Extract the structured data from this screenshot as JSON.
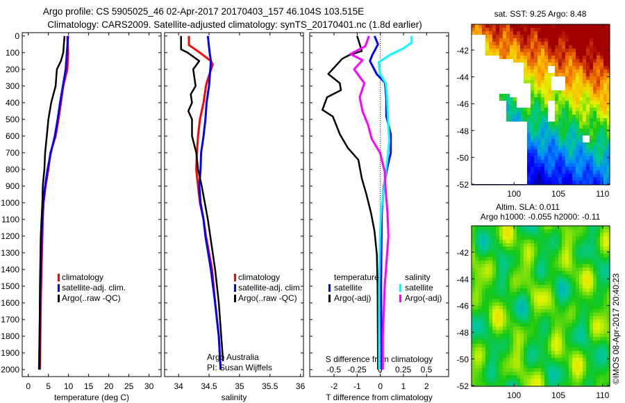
{
  "header": {
    "title_line1": "Argo profile: CS 5905025_46 02-Apr-2017 20170403_157 46.104S 103.515E",
    "title_line2": "Climatology: CARS2009. Satellite-adjusted climatology: synTS_20170401.nc (1.8d earlier)"
  },
  "chart_data": [
    {
      "id": "temperature",
      "type": "line",
      "xlabel": "temperature (deg C)",
      "xlim": [
        -1.5,
        33
      ],
      "xticks": [
        0,
        5,
        10,
        15,
        20,
        25,
        30
      ],
      "xtick_labels": [
        "0",
        "5",
        "10",
        "15",
        "20",
        "25",
        "30"
      ],
      "ylabel": "depth",
      "ylim": [
        -20,
        2042
      ],
      "yticks": [
        0,
        100,
        200,
        300,
        400,
        500,
        600,
        700,
        800,
        900,
        1000,
        1100,
        1200,
        1300,
        1400,
        1500,
        1600,
        1700,
        1800,
        1900,
        2000
      ],
      "ytick_labels": [
        "0",
        "100",
        "200",
        "300",
        "400",
        "500",
        "600",
        "700",
        "800",
        "900",
        "1000",
        "1100",
        "1200",
        "1300",
        "1400",
        "1500",
        "1600",
        "1700",
        "1800",
        "1900",
        "2000"
      ],
      "series": [
        {
          "name": "climatology",
          "color": "#ff0000",
          "points": [
            [
              0,
              9.7
            ],
            [
              100,
              9.9
            ],
            [
              200,
              9.7
            ],
            [
              300,
              8.7
            ],
            [
              400,
              8.1
            ],
            [
              500,
              7.5
            ],
            [
              600,
              6.8
            ],
            [
              700,
              5.5
            ],
            [
              800,
              5.0
            ],
            [
              900,
              4.3
            ],
            [
              1000,
              3.8
            ],
            [
              1100,
              3.6
            ],
            [
              1200,
              3.5
            ],
            [
              1400,
              3.3
            ],
            [
              1600,
              3.1
            ],
            [
              2000,
              2.9
            ]
          ]
        },
        {
          "name": "satellite-adj. clim.",
          "color": "#0000ff",
          "points": [
            [
              0,
              9.9
            ],
            [
              100,
              9.6
            ],
            [
              200,
              9.3
            ],
            [
              300,
              8.6
            ],
            [
              400,
              7.9
            ],
            [
              500,
              7.3
            ],
            [
              600,
              6.6
            ],
            [
              700,
              5.6
            ],
            [
              800,
              4.8
            ],
            [
              900,
              4.2
            ],
            [
              1000,
              3.7
            ],
            [
              1200,
              3.3
            ],
            [
              1500,
              3.0
            ],
            [
              2000,
              2.7
            ]
          ]
        },
        {
          "name": "Argo(..raw -QC)",
          "color": "#000000",
          "points": [
            [
              0,
              9.0
            ],
            [
              100,
              8.7
            ],
            [
              150,
              8.1
            ],
            [
              200,
              7.1
            ],
            [
              300,
              6.8
            ],
            [
              400,
              5.7
            ],
            [
              500,
              5.0
            ],
            [
              600,
              4.6
            ],
            [
              700,
              4.2
            ],
            [
              800,
              4.0
            ],
            [
              900,
              3.6
            ],
            [
              1000,
              3.5
            ],
            [
              1100,
              3.3
            ],
            [
              1200,
              3.1
            ],
            [
              1500,
              2.9
            ],
            [
              2000,
              2.8
            ]
          ]
        }
      ],
      "legend": {
        "placement": "lower-middle",
        "entries": [
          "climatology",
          "satellite-adj. clim.",
          "Argo(..raw -QC)"
        ]
      }
    },
    {
      "id": "salinity",
      "type": "line",
      "xlabel": "salinity",
      "xlim": [
        33.77,
        36.05
      ],
      "xticks": [
        34,
        34.5,
        35,
        35.5,
        36
      ],
      "xtick_labels": [
        "34",
        "34.5",
        "35",
        "35.5",
        "36"
      ],
      "ylim": [
        -20,
        2042
      ],
      "series": [
        {
          "name": "climatology",
          "color": "#ff0000",
          "points": [
            [
              0,
              34.17
            ],
            [
              54,
              34.17
            ],
            [
              100,
              34.35
            ],
            [
              150,
              34.53
            ],
            [
              170,
              34.56
            ],
            [
              270,
              34.47
            ],
            [
              300,
              34.45
            ],
            [
              400,
              34.41
            ],
            [
              500,
              34.35
            ],
            [
              600,
              34.32
            ],
            [
              700,
              34.3
            ],
            [
              800,
              34.29
            ],
            [
              900,
              34.32
            ],
            [
              1000,
              34.35
            ],
            [
              1100,
              34.41
            ],
            [
              1200,
              34.45
            ],
            [
              1400,
              34.55
            ],
            [
              1600,
              34.6
            ],
            [
              1800,
              34.66
            ],
            [
              2000,
              34.69
            ]
          ]
        },
        {
          "name": "satellite-adj. clim.",
          "color": "#0000ff",
          "points": [
            [
              0,
              34.48
            ],
            [
              100,
              34.51
            ],
            [
              150,
              34.53
            ],
            [
              200,
              34.52
            ],
            [
              300,
              34.5
            ],
            [
              400,
              34.46
            ],
            [
              500,
              34.44
            ],
            [
              600,
              34.41
            ],
            [
              700,
              34.37
            ],
            [
              800,
              34.36
            ],
            [
              900,
              34.34
            ],
            [
              1000,
              34.36
            ],
            [
              1100,
              34.41
            ],
            [
              1200,
              34.44
            ],
            [
              1400,
              34.53
            ],
            [
              1600,
              34.6
            ],
            [
              1800,
              34.66
            ],
            [
              2000,
              34.69
            ]
          ]
        },
        {
          "name": "Argo(..raw -QC)",
          "color": "#000000",
          "points": [
            [
              0,
              34.04
            ],
            [
              80,
              34.04
            ],
            [
              100,
              34.15
            ],
            [
              150,
              34.34
            ],
            [
              200,
              34.24
            ],
            [
              300,
              34.28
            ],
            [
              350,
              34.2
            ],
            [
              400,
              34.22
            ],
            [
              450,
              34.16
            ],
            [
              500,
              34.22
            ],
            [
              600,
              34.22
            ],
            [
              700,
              34.29
            ],
            [
              800,
              34.32
            ],
            [
              900,
              34.38
            ],
            [
              1000,
              34.43
            ],
            [
              1100,
              34.48
            ],
            [
              1200,
              34.52
            ],
            [
              1400,
              34.6
            ],
            [
              1600,
              34.66
            ],
            [
              1800,
              34.7
            ],
            [
              1950,
              34.73
            ]
          ]
        }
      ],
      "legend": {
        "placement": "lower-right",
        "entries": [
          "climatology",
          "satellite-adj. clim.",
          "Argo(..raw -QC)"
        ]
      },
      "annotations": [
        "Argo Australia",
        "PI: Susan Wijffels"
      ]
    },
    {
      "id": "difference",
      "type": "line",
      "xlabel": "T difference from climatology",
      "xlim": [
        -3.05,
        2.95
      ],
      "xticks": [
        -2,
        -1,
        0,
        1,
        2
      ],
      "xtick_labels": [
        "-2",
        "-1",
        "0",
        "1",
        "2"
      ],
      "x2label": "S difference from climatology",
      "x2lim": [
        -0.76,
        0.74
      ],
      "x2ticks": [
        -0.5,
        -0.25,
        0,
        0.25,
        0.5
      ],
      "x2tick_labels": [
        "-0.5",
        "-0.25",
        "0",
        "0.25",
        "0.5"
      ],
      "ylim": [
        -20,
        2042
      ],
      "series": [
        {
          "name": "temperature satellite",
          "axis": "T",
          "color": "#0000ff",
          "points": [
            [
              0,
              -0.25
            ],
            [
              50,
              -0.1
            ],
            [
              115,
              -0.35
            ],
            [
              150,
              -0.45
            ],
            [
              230,
              -0.15
            ],
            [
              280,
              0.2
            ],
            [
              370,
              0.26
            ],
            [
              480,
              0.26
            ],
            [
              590,
              0.45
            ],
            [
              700,
              0.45
            ],
            [
              790,
              0.3
            ],
            [
              900,
              0.15
            ],
            [
              1060,
              0.06
            ],
            [
              1500,
              0.03
            ],
            [
              2000,
              0.06
            ]
          ]
        },
        {
          "name": "temperature Argo(-adj)",
          "axis": "T",
          "color": "#000000",
          "points": [
            [
              0,
              -1.0
            ],
            [
              90,
              -0.8
            ],
            [
              115,
              -1.35
            ],
            [
              137,
              -1.65
            ],
            [
              228,
              -2.25
            ],
            [
              283,
              -1.75
            ],
            [
              325,
              -1.7
            ],
            [
              367,
              -2.3
            ],
            [
              443,
              -2.5
            ],
            [
              483,
              -2.05
            ],
            [
              588,
              -1.75
            ],
            [
              672,
              -1.4
            ],
            [
              742,
              -0.95
            ],
            [
              854,
              -0.8
            ],
            [
              950,
              -0.6
            ],
            [
              1062,
              -0.4
            ],
            [
              1171,
              -0.25
            ],
            [
              1312,
              -0.15
            ],
            [
              1500,
              -0.12
            ],
            [
              2000,
              -0.1
            ]
          ]
        },
        {
          "name": "salinity satellite",
          "axis": "S",
          "color": "#00ffff",
          "points": [
            [
              0,
              0.34
            ],
            [
              40,
              0.34
            ],
            [
              75,
              0.25
            ],
            [
              115,
              0.1
            ],
            [
              158,
              -0.015
            ],
            [
              228,
              0.0
            ],
            [
              283,
              0.06
            ],
            [
              367,
              0.075
            ],
            [
              500,
              0.085
            ],
            [
              630,
              0.1
            ],
            [
              780,
              0.07
            ],
            [
              920,
              0.04
            ],
            [
              1060,
              0.01
            ],
            [
              1200,
              0.0
            ],
            [
              1500,
              -0.01
            ],
            [
              2000,
              -0.01
            ]
          ]
        },
        {
          "name": "salinity Argo(-adj)",
          "axis": "S",
          "color": "#ff00ff",
          "points": [
            [
              0,
              -0.12
            ],
            [
              62,
              -0.16
            ],
            [
              108,
              -0.32
            ],
            [
              145,
              -0.19
            ],
            [
              200,
              -0.28
            ],
            [
              283,
              -0.17
            ],
            [
              367,
              -0.22
            ],
            [
              450,
              -0.19
            ],
            [
              533,
              -0.13
            ],
            [
              617,
              -0.09
            ],
            [
              700,
              0.0
            ],
            [
              812,
              0.05
            ],
            [
              921,
              0.06
            ],
            [
              1062,
              0.08
            ],
            [
              1200,
              0.09
            ],
            [
              1500,
              0.05
            ],
            [
              1800,
              0.03
            ],
            [
              2000,
              0.03
            ]
          ]
        }
      ],
      "legend": {
        "placement": "lower-middle",
        "groups": [
          {
            "heading": "temperature",
            "entries": [
              {
                "label": "satellite",
                "color": "#0000ff"
              },
              {
                "label": "Argo(-adj)",
                "color": "#000000"
              }
            ]
          },
          {
            "heading": "salinity",
            "entries": [
              {
                "label": "satellite",
                "color": "#00ffff"
              },
              {
                "label": "Argo(-adj)",
                "color": "#ff00ff"
              }
            ]
          }
        ]
      }
    },
    {
      "id": "sst-map",
      "type": "heatmap",
      "title": "sat. SST: 9.25 Argo: 8.48",
      "lonlim": [
        95.2,
        110.8
      ],
      "latlim": [
        -52.05,
        -40.08
      ],
      "lon_ticks": [
        100,
        105,
        110
      ],
      "lon_tick_labels": [
        "100",
        "105",
        "110"
      ],
      "lat_ticks": [
        -42,
        -44,
        -46,
        -48,
        -50,
        -52
      ],
      "lat_tick_labels": [
        "-42",
        "-44",
        "-46",
        "-48",
        "-50",
        "-52"
      ],
      "masked_regions": [
        [
          95.2,
          96.6,
          -44.3,
          -40.9
        ],
        [
          95.2,
          98.4,
          -46,
          -42.4
        ],
        [
          95.2,
          100.0,
          -45.3,
          -42.8
        ],
        [
          99.7,
          101.0,
          -45.6,
          -43.0
        ],
        [
          100.4,
          102.0,
          -46.3,
          -44.6
        ],
        [
          95.2,
          99.3,
          -47.3,
          -45.8
        ],
        [
          95.2,
          101.6,
          -52.1,
          -47.3
        ],
        [
          103.7,
          104.7,
          -43.8,
          -43.1
        ],
        [
          104.4,
          105.6,
          -45.0,
          -44.0
        ],
        [
          104.0,
          104.8,
          -47.3,
          -45.8
        ],
        [
          107.9,
          108.4,
          -48.9,
          -48.4
        ]
      ]
    },
    {
      "id": "sla-map",
      "type": "heatmap",
      "title_line1": "Altim. SLA: 0.011",
      "title_line2": "Argo h1000: -0.055 h2000: -0.11",
      "lonlim": [
        95.2,
        110.8
      ],
      "latlim": [
        -52.05,
        -40.03
      ],
      "lon_ticks": [
        100,
        105,
        110
      ],
      "lon_tick_labels": [
        "100",
        "105",
        "110"
      ],
      "lat_ticks": [
        -42,
        -44,
        -46,
        -48,
        -50,
        -52
      ],
      "lat_tick_labels": [
        "-42",
        "-44",
        "-46",
        "-48",
        "-50",
        "-52"
      ]
    }
  ],
  "footer": {
    "credit": "©IMOS 08-Apr-2017 20:40:23"
  }
}
